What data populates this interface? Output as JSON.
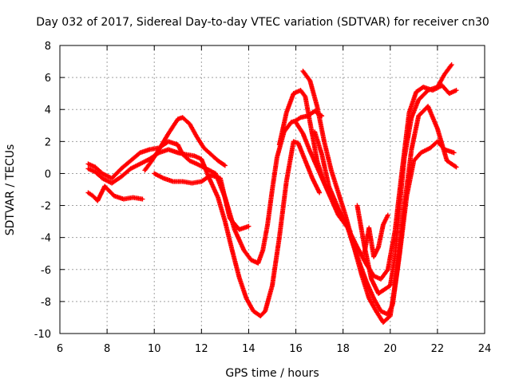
{
  "chart_data": {
    "type": "scatter",
    "title": "Day 032 of 2017, Sidereal Day-to-day VTEC variation (SDTVAR) for receiver cn30",
    "xlabel": "GPS time / hours",
    "ylabel": "SDTVAR / TECUs",
    "xlim": [
      6,
      24
    ],
    "ylim": [
      -10,
      8
    ],
    "xticks": [
      "6",
      "8",
      "10",
      "12",
      "14",
      "16",
      "18",
      "20",
      "22",
      "24"
    ],
    "yticks": [
      "8",
      "6",
      "4",
      "2",
      "0",
      "-2",
      "-4",
      "-6",
      "-8",
      "-10"
    ],
    "grid": true,
    "marker": "+",
    "color": "#ff0000",
    "series": [
      {
        "name": "trace-1",
        "x": [
          7.2,
          7.5,
          7.8,
          8.2,
          8.6,
          9.0,
          9.4,
          9.8,
          10.2,
          10.6,
          11.0,
          11.2,
          11.5,
          11.8,
          12.2,
          12.6,
          13.0,
          13.4,
          13.8,
          14.1,
          14.4,
          14.6,
          14.8,
          15.0,
          15.2,
          15.5,
          15.8,
          16.0,
          16.2,
          16.5,
          16.8,
          17.1
        ],
        "y": [
          0.6,
          0.4,
          0.0,
          -0.3,
          0.3,
          0.8,
          1.3,
          1.5,
          1.6,
          2.0,
          1.8,
          1.2,
          0.8,
          0.6,
          0.3,
          0.0,
          -1.5,
          -3.5,
          -4.8,
          -5.4,
          -5.6,
          -4.8,
          -3.2,
          -1.0,
          1.0,
          2.6,
          3.2,
          3.3,
          3.5,
          3.6,
          3.9,
          3.6
        ]
      },
      {
        "name": "trace-2",
        "x": [
          7.2,
          7.5,
          7.8,
          8.2,
          8.6,
          9.0,
          9.4,
          9.8,
          10.2,
          10.6,
          11.0,
          11.3,
          11.7,
          12.0,
          12.3,
          12.7,
          13.0,
          13.3,
          13.6,
          13.9,
          14.2,
          14.5,
          14.7,
          15.0,
          15.3,
          15.6,
          15.9,
          16.1,
          16.4,
          16.7,
          17.0
        ],
        "y": [
          0.3,
          0.1,
          -0.3,
          -0.6,
          -0.2,
          0.3,
          0.6,
          0.9,
          1.3,
          1.5,
          1.3,
          1.2,
          1.1,
          0.9,
          -0.2,
          -1.5,
          -3.0,
          -4.8,
          -6.5,
          -7.8,
          -8.6,
          -8.9,
          -8.6,
          -7.0,
          -4.0,
          -0.5,
          2.0,
          1.9,
          0.8,
          -0.3,
          -1.2
        ]
      },
      {
        "name": "trace-3",
        "x": [
          9.6,
          9.9,
          10.2,
          10.6,
          11.0,
          11.2,
          11.5,
          11.8,
          12.1,
          12.4,
          12.7,
          13.0
        ],
        "y": [
          0.2,
          0.8,
          1.5,
          2.5,
          3.4,
          3.5,
          3.1,
          2.3,
          1.6,
          1.2,
          0.8,
          0.5
        ]
      },
      {
        "name": "trace-4",
        "x": [
          7.2,
          7.4,
          7.6,
          7.9,
          8.3,
          8.7,
          9.1,
          9.5
        ],
        "y": [
          -1.2,
          -1.4,
          -1.7,
          -0.8,
          -1.4,
          -1.6,
          -1.5,
          -1.6
        ]
      },
      {
        "name": "trace-5",
        "x": [
          10.0,
          10.4,
          10.8,
          11.2,
          11.6,
          12.0,
          12.4,
          12.8,
          13.2,
          13.6,
          14.0
        ],
        "y": [
          0.0,
          -0.3,
          -0.5,
          -0.5,
          -0.6,
          -0.5,
          -0.1,
          -0.3,
          -2.8,
          -3.5,
          -3.3
        ]
      },
      {
        "name": "trace-6",
        "x": [
          15.3,
          15.6,
          15.9,
          16.2,
          16.4,
          16.6,
          16.9,
          17.2,
          17.5,
          17.9,
          18.2,
          18.6,
          19.0,
          19.3,
          19.6,
          19.9,
          20.2,
          20.5,
          20.8,
          21.1,
          21.4,
          21.8,
          22.2,
          22.5,
          22.8
        ],
        "y": [
          1.8,
          3.8,
          5.0,
          5.2,
          4.8,
          3.2,
          0.8,
          -0.6,
          -1.4,
          -2.6,
          -3.4,
          -4.6,
          -5.7,
          -6.4,
          -6.6,
          -6.0,
          -3.6,
          0.2,
          3.8,
          5.1,
          5.4,
          5.2,
          5.5,
          5.0,
          5.2
        ]
      },
      {
        "name": "trace-7",
        "x": [
          16.3,
          16.6,
          16.9,
          17.2,
          17.5,
          17.8,
          18.1,
          18.4,
          18.7,
          19.0,
          19.3,
          19.6,
          19.9,
          20.1,
          20.4,
          20.7,
          21.0,
          21.3,
          21.7,
          22.0,
          22.3,
          22.7
        ],
        "y": [
          6.4,
          5.8,
          4.2,
          2.0,
          0.2,
          -1.2,
          -2.6,
          -4.2,
          -5.6,
          -6.8,
          -7.8,
          -8.6,
          -8.8,
          -8.2,
          -5.0,
          -1.4,
          0.8,
          1.3,
          1.6,
          2.0,
          1.5,
          1.3
        ]
      },
      {
        "name": "trace-8",
        "x": [
          16.8,
          17.1,
          17.4,
          17.8,
          18.2,
          18.5,
          18.8,
          19.1,
          19.4,
          19.7,
          20.0,
          20.3,
          20.6,
          20.9,
          21.2,
          21.6,
          22.0,
          22.4,
          22.8
        ],
        "y": [
          2.6,
          1.2,
          -0.8,
          -2.2,
          -3.4,
          -4.8,
          -6.4,
          -7.8,
          -8.6,
          -9.3,
          -8.9,
          -6.0,
          -2.0,
          1.5,
          3.6,
          4.2,
          2.8,
          0.8,
          0.4
        ]
      },
      {
        "name": "trace-9",
        "x": [
          18.6,
          18.9,
          19.2,
          19.5,
          19.8,
          20.0,
          20.2,
          20.4,
          20.6,
          20.9,
          21.2,
          21.6,
          22.0,
          22.3,
          22.6
        ],
        "y": [
          -2.0,
          -4.5,
          -6.6,
          -7.5,
          -7.2,
          -7.0,
          -5.2,
          -2.0,
          1.0,
          3.5,
          4.6,
          5.2,
          5.4,
          6.2,
          6.8
        ]
      },
      {
        "name": "trace-10",
        "x": [
          18.9,
          19.1,
          19.3,
          19.5,
          19.7,
          19.9
        ],
        "y": [
          -5.0,
          -3.4,
          -5.2,
          -4.6,
          -3.2,
          -2.6
        ]
      },
      {
        "name": "trace-11",
        "x": [
          16.0,
          16.3,
          16.6,
          16.9,
          17.2,
          17.5,
          17.8,
          18.1,
          18.3
        ],
        "y": [
          3.2,
          2.5,
          1.4,
          0.4,
          -0.6,
          -1.6,
          -2.6,
          -3.2,
          -3.6
        ]
      }
    ]
  }
}
